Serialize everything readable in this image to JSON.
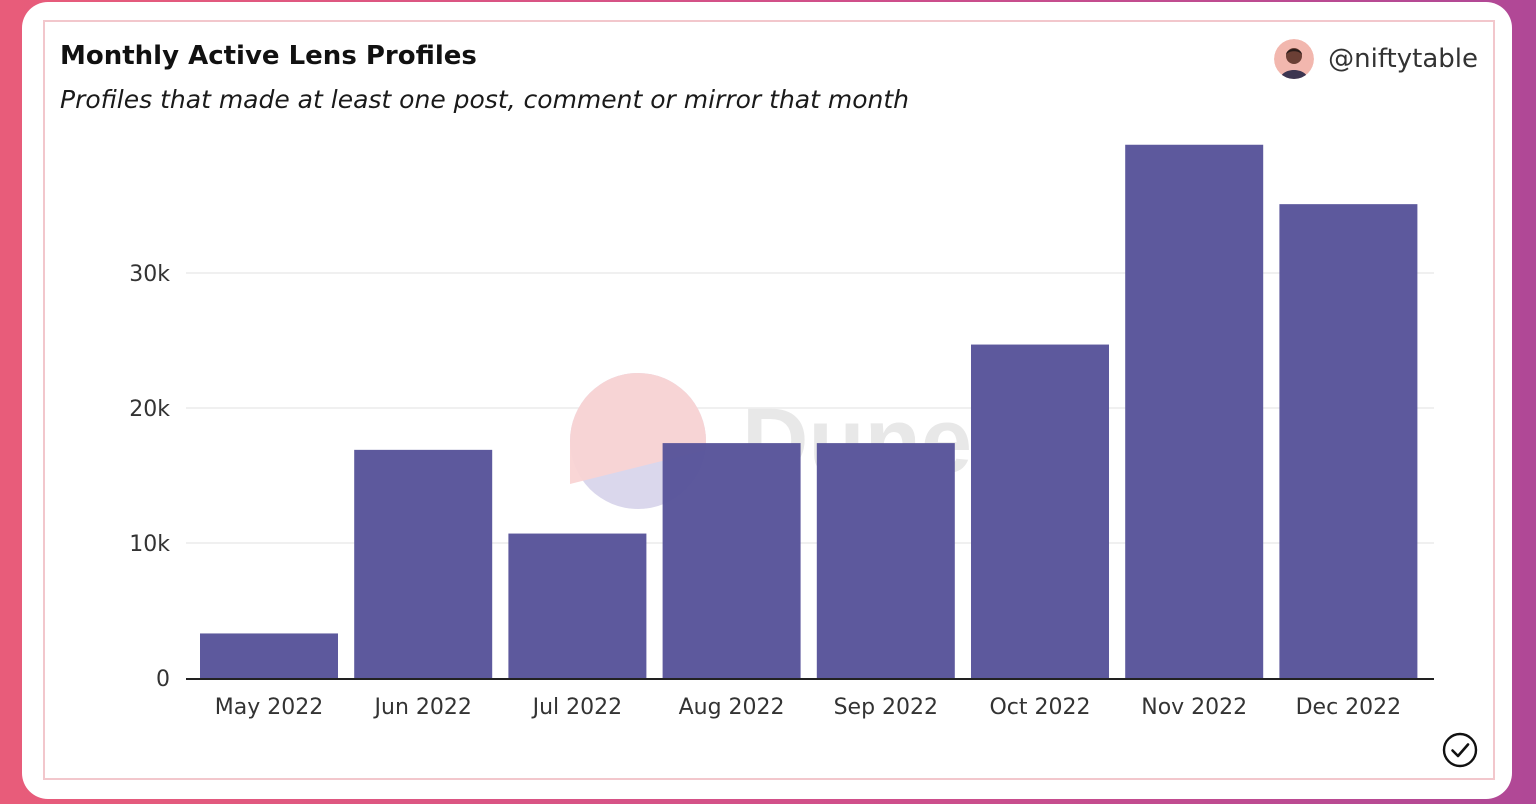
{
  "header": {
    "title": "Monthly Active Lens Profiles",
    "subtitle": "Profiles that made at least one post, comment or mirror that month",
    "author": "@niftytable"
  },
  "watermark": {
    "text": "Dune"
  },
  "colors": {
    "bar": "#58549a",
    "grid": "#ececec",
    "axis": "#222222",
    "card_border": "#f2c7cc"
  },
  "chart_data": {
    "type": "bar",
    "categories": [
      "May 2022",
      "Jun 2022",
      "Jul 2022",
      "Aug 2022",
      "Sep 2022",
      "Oct 2022",
      "Nov 2022",
      "Dec 2022"
    ],
    "values": [
      3300,
      16900,
      10700,
      17400,
      17400,
      24700,
      39500,
      35100
    ],
    "ylim": [
      0,
      40000
    ],
    "yticks": [
      0,
      10000,
      20000,
      30000
    ],
    "ytick_labels": [
      "0",
      "10k",
      "20k",
      "30k"
    ],
    "grid": true,
    "legend": "none"
  }
}
